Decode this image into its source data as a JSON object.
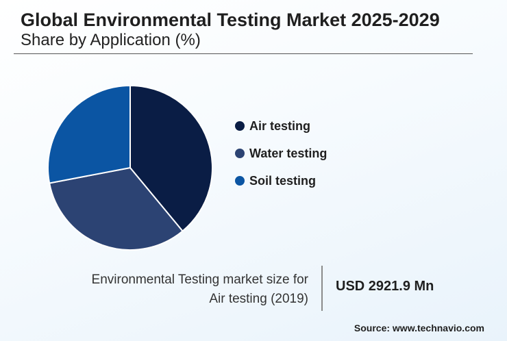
{
  "header": {
    "title": "Global Environmental Testing Market 2025-2029",
    "subtitle": "Share by Application (%)"
  },
  "chart_data": {
    "type": "pie",
    "title": "Global Environmental Testing Market 2025-2029",
    "subtitle": "Share by Application (%)",
    "categories": [
      "Air testing",
      "Water testing",
      "Soil testing"
    ],
    "values": [
      39,
      33,
      28
    ],
    "colors": [
      "#0a1d45",
      "#2c4373",
      "#0b55a3"
    ],
    "legend_position": "right"
  },
  "stat": {
    "label_line1": "Environmental Testing market size for",
    "label_line2": "Air testing (2019)",
    "value": "USD 2921.9 Mn"
  },
  "footer": {
    "source": "Source: www.technavio.com"
  }
}
